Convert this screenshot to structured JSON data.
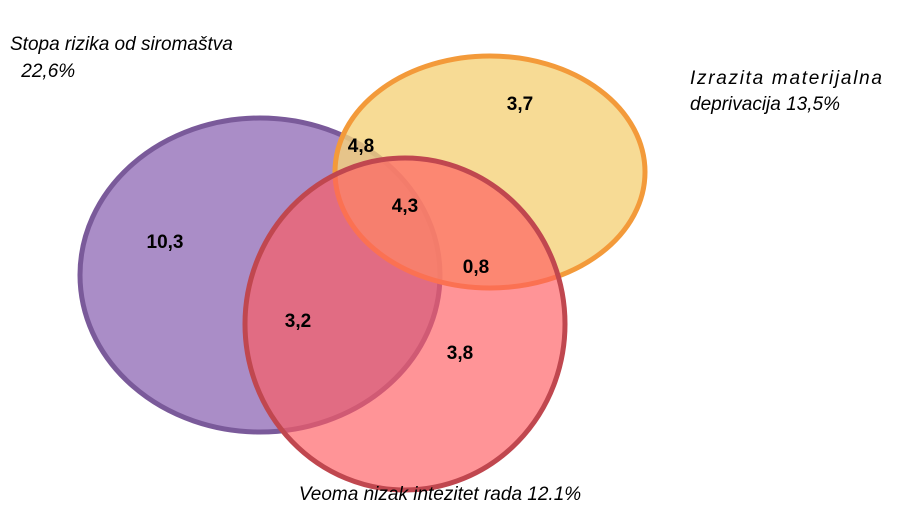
{
  "sets": [
    {
      "label": [
        "Stopa rizika od siromaštva",
        " 22,6%"
      ]
    },
    {
      "label": [
        "Izrazita materijalna",
        "deprivacija 13,5%"
      ]
    },
    {
      "label": [
        "Veoma nizak intezitet rada 12.1%"
      ]
    }
  ],
  "regions": [
    {
      "label": "10,3"
    },
    {
      "label": "3,7"
    },
    {
      "label": "3,8"
    },
    {
      "label": "4,8"
    },
    {
      "label": "3,2"
    },
    {
      "label": "0,8"
    },
    {
      "label": "4,3"
    }
  ]
}
